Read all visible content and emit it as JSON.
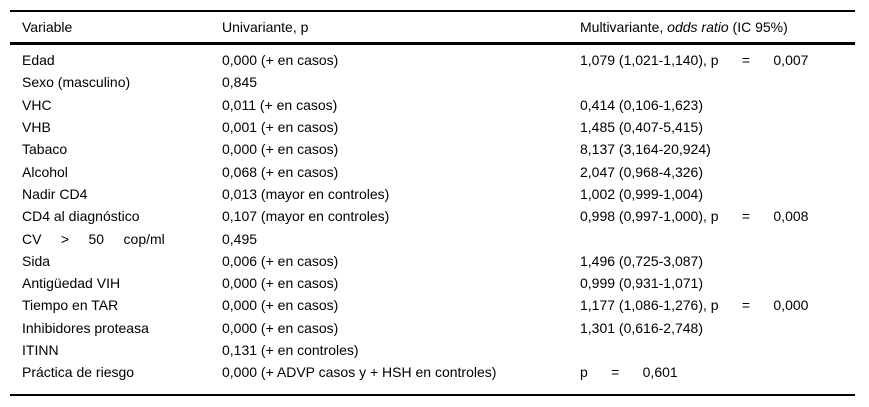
{
  "colors": {
    "text": "#000000",
    "background": "#ffffff",
    "rule": "#000000"
  },
  "table": {
    "headers": {
      "variable": "Variable",
      "univariante": "Univariante, p",
      "multivariante_prefix": "Multivariante, ",
      "multivariante_italic": "odds ratio",
      "multivariante_suffix": " (IC 95%)"
    },
    "rows": [
      {
        "variable": "Edad",
        "univariante": "0,000 (+ en casos)",
        "multivariante": "1,079 (1,021-1,140), p      =      0,007"
      },
      {
        "variable": "Sexo (masculino)",
        "univariante": "0,845",
        "multivariante": ""
      },
      {
        "variable": "VHC",
        "univariante": "0,011 (+ en casos)",
        "multivariante": "0,414 (0,106-1,623)"
      },
      {
        "variable": "VHB",
        "univariante": "0,001 (+ en casos)",
        "multivariante": "1,485 (0,407-5,415)"
      },
      {
        "variable": "Tabaco",
        "univariante": "0,000 (+ en casos)",
        "multivariante": "8,137 (3,164-20,924)"
      },
      {
        "variable": "Alcohol",
        "univariante": "0,068 (+ en casos)",
        "multivariante": "2,047 (0,968-4,326)"
      },
      {
        "variable": "Nadir CD4",
        "univariante": "0,013 (mayor en controles)",
        "multivariante": "1,002 (0,999-1,004)"
      },
      {
        "variable": "CD4 al diagnóstico",
        "univariante": "0,107 (mayor en controles)",
        "multivariante": "0,998 (0,997-1,000), p      =      0,008"
      },
      {
        "variable": "CV     >     50     cop/ml",
        "univariante": "0,495",
        "multivariante": ""
      },
      {
        "variable": "Sida",
        "univariante": "0,006 (+ en casos)",
        "multivariante": "1,496 (0,725-3,087)"
      },
      {
        "variable": "Antigüedad VIH",
        "univariante": "0,000 (+ en casos)",
        "multivariante": "0,999 (0,931-1,071)"
      },
      {
        "variable": "Tiempo en TAR",
        "univariante": "0,000 (+ en casos)",
        "multivariante": "1,177 (1,086-1,276), p      =      0,000"
      },
      {
        "variable": "Inhibidores proteasa",
        "univariante": "0,000 (+ en casos)",
        "multivariante": "1,301 (0,616-2,748)"
      },
      {
        "variable": "ITINN",
        "univariante": "0,131 (+ en controles)",
        "multivariante": ""
      },
      {
        "variable": "Práctica de riesgo",
        "univariante": "0,000 (+ ADVP casos y + HSH en controles)",
        "multivariante": "p      =      0,601"
      }
    ]
  }
}
